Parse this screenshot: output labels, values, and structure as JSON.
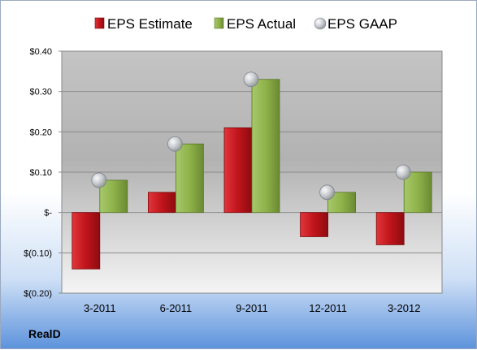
{
  "company": "RealD",
  "colors": {
    "estimate": "#c0141b",
    "actual": "#8fb24a",
    "gaap": "#c9ccd2"
  },
  "chart_data": {
    "type": "bar",
    "title": "",
    "xlabel": "",
    "ylabel": "",
    "categories": [
      "3-2011",
      "6-2011",
      "9-2011",
      "12-2011",
      "3-2012"
    ],
    "series": [
      {
        "name": "EPS Estimate",
        "kind": "bar",
        "values": [
          -0.14,
          0.05,
          0.21,
          -0.06,
          -0.08
        ]
      },
      {
        "name": "EPS Actual",
        "kind": "bar",
        "values": [
          0.08,
          0.17,
          0.33,
          0.05,
          0.1
        ]
      },
      {
        "name": "EPS GAAP",
        "kind": "marker",
        "values": [
          0.08,
          0.17,
          0.33,
          0.05,
          0.1
        ]
      }
    ],
    "ylim": [
      -0.2,
      0.4
    ],
    "yticks": [
      {
        "value": 0.4,
        "label": "$0.40"
      },
      {
        "value": 0.3,
        "label": "$0.30"
      },
      {
        "value": 0.2,
        "label": "$0.20"
      },
      {
        "value": 0.1,
        "label": "$0.10"
      },
      {
        "value": 0.0,
        "label": "$-"
      },
      {
        "value": -0.1,
        "label": "$(0.10)"
      },
      {
        "value": -0.2,
        "label": "$(0.20)"
      }
    ],
    "grid": true,
    "legend": "top-center"
  }
}
